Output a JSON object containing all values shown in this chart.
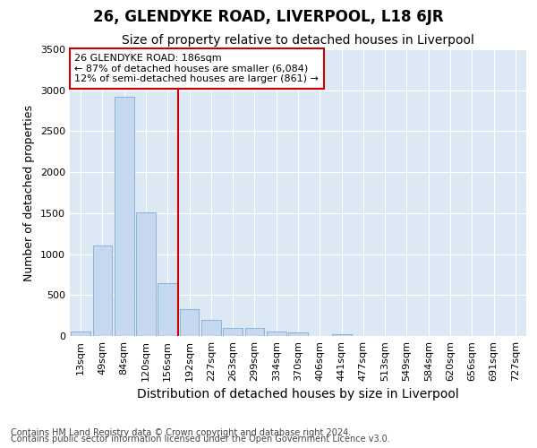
{
  "title": "26, GLENDYKE ROAD, LIVERPOOL, L18 6JR",
  "subtitle": "Size of property relative to detached houses in Liverpool",
  "xlabel": "Distribution of detached houses by size in Liverpool",
  "ylabel": "Number of detached properties",
  "categories": [
    "13sqm",
    "49sqm",
    "84sqm",
    "120sqm",
    "156sqm",
    "192sqm",
    "227sqm",
    "263sqm",
    "299sqm",
    "334sqm",
    "370sqm",
    "406sqm",
    "441sqm",
    "477sqm",
    "513sqm",
    "549sqm",
    "584sqm",
    "620sqm",
    "656sqm",
    "691sqm",
    "727sqm"
  ],
  "values": [
    55,
    1100,
    2920,
    1510,
    640,
    330,
    195,
    95,
    100,
    60,
    45,
    0,
    20,
    0,
    0,
    0,
    0,
    0,
    0,
    0,
    0
  ],
  "bar_color": "#c5d8f0",
  "bar_edge_color": "#7aadd4",
  "vline_index": 5,
  "vline_color": "#cc0000",
  "ylim": [
    0,
    3500
  ],
  "yticks": [
    0,
    500,
    1000,
    1500,
    2000,
    2500,
    3000,
    3500
  ],
  "annotation_text": "26 GLENDYKE ROAD: 186sqm\n← 87% of detached houses are smaller (6,084)\n12% of semi-detached houses are larger (861) →",
  "annotation_box_color": "#ffffff",
  "annotation_box_edge": "#cc0000",
  "footer_line1": "Contains HM Land Registry data © Crown copyright and database right 2024.",
  "footer_line2": "Contains public sector information licensed under the Open Government Licence v3.0.",
  "bg_color": "#ffffff",
  "plot_bg_color": "#dce9f5",
  "grid_color": "#ffffff",
  "title_fontsize": 12,
  "subtitle_fontsize": 10,
  "axis_label_fontsize": 9,
  "tick_fontsize": 8,
  "footer_fontsize": 7,
  "annotation_fontsize": 8
}
